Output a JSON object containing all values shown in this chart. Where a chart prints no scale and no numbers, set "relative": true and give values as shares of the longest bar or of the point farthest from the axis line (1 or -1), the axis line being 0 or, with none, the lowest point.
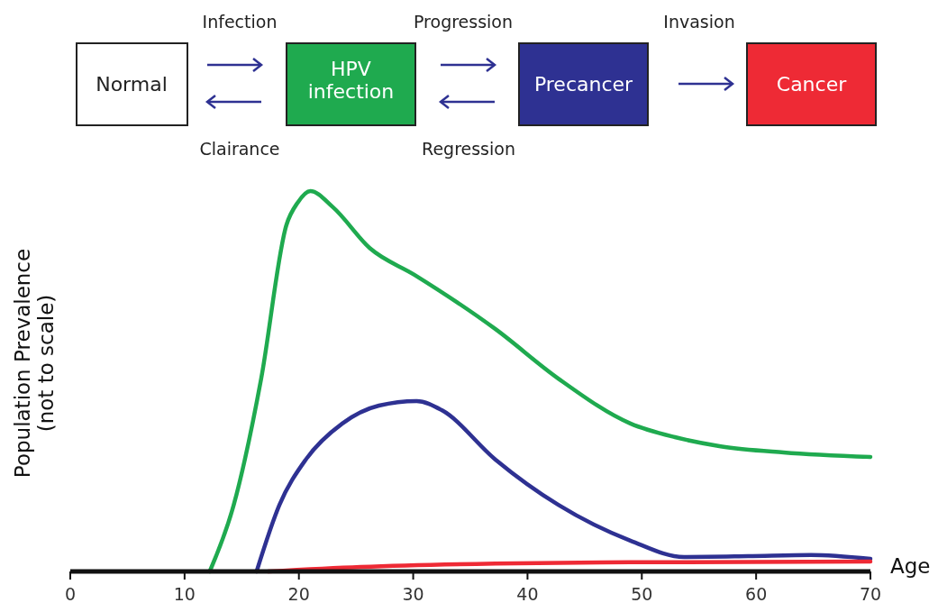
{
  "chart_data": {
    "type": "line",
    "relative": true,
    "xlabel": "Age",
    "ylabel": "Population Prevalence\n(not to scale)",
    "xlim": [
      0,
      70
    ],
    "xticks": [
      0,
      10,
      20,
      30,
      40,
      50,
      60,
      70
    ],
    "grid": false,
    "line_style": "solid",
    "annotations": [
      "Normal",
      "Infection",
      "Clairance",
      "Progression",
      "Regression",
      "Invasion",
      "HPV infection",
      "Precancer",
      "Cancer"
    ],
    "series": [
      {
        "color": "#1faa4f",
        "x": [
          12.2,
          14.3,
          16.7,
          18.9,
          19.9,
          21.0,
          23.0,
          26.2,
          30.1,
          37.2,
          42.7,
          49.0,
          52.9,
          56.9,
          62.4,
          70
        ],
        "values": [
          0,
          0.175,
          0.507,
          0.91,
          0.97,
          1.0,
          0.957,
          0.85,
          0.78,
          0.637,
          0.507,
          0.389,
          0.353,
          0.329,
          0.313,
          0.301
        ]
      },
      {
        "color": "#2e3192",
        "x": [
          16.3,
          18.3,
          20.6,
          23.8,
          27.0,
          30.3,
          32.5,
          37.2,
          42.7,
          49.0,
          53.7,
          59.3,
          64.8,
          70
        ],
        "values": [
          0,
          0.175,
          0.294,
          0.389,
          0.436,
          0.448,
          0.424,
          0.294,
          0.175,
          0.081,
          0.038,
          0.04,
          0.043,
          0.033
        ]
      },
      {
        "color": "#ee2a35",
        "x": [
          17.3,
          25.4,
          37.2,
          49,
          70
        ],
        "values": [
          0,
          0.012,
          0.021,
          0.024,
          0.026
        ]
      }
    ]
  }
}
